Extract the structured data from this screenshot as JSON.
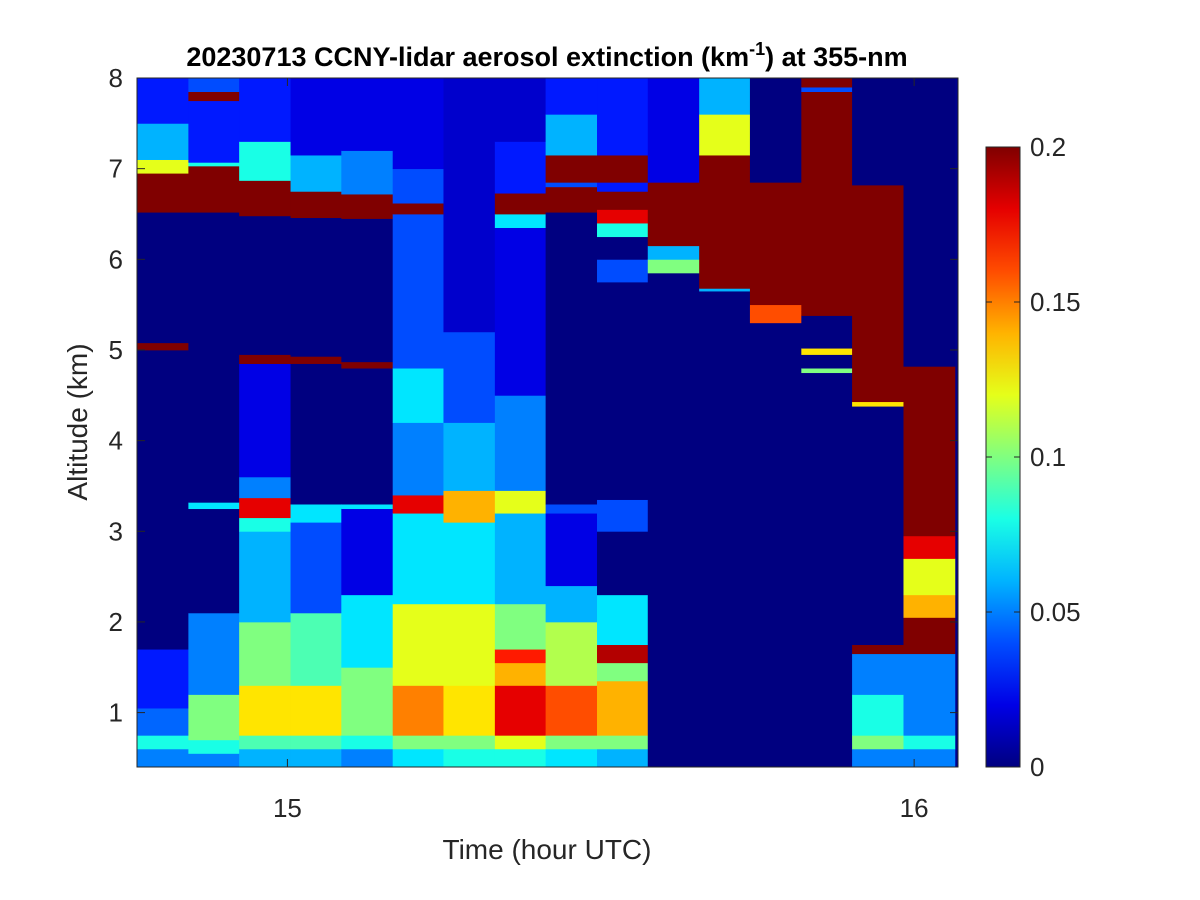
{
  "chart_data": {
    "type": "heatmap",
    "title": "20230713 CCNY-lidar aerosol extinction (km",
    "title_superscript": "-1",
    "title_suffix": ") at 355-nm",
    "xlabel": "Time (hour UTC)",
    "ylabel": "Altitude (km)",
    "xlim": [
      14.76,
      16.07
    ],
    "ylim": [
      0.4,
      8.0
    ],
    "x_ticks": [
      15,
      16
    ],
    "x_tick_labels": [
      "15",
      "16"
    ],
    "y_ticks": [
      1,
      2,
      3,
      4,
      5,
      6,
      7,
      8
    ],
    "y_tick_labels": [
      "1",
      "2",
      "3",
      "4",
      "5",
      "6",
      "7",
      "8"
    ],
    "colormap": "jet",
    "clim": [
      0,
      0.2
    ],
    "colorbar_ticks": [
      0,
      0.05,
      0.1,
      0.15,
      0.2
    ],
    "colorbar_tick_labels": [
      "0",
      "0.05",
      "0.1",
      "0.15",
      "0.2"
    ],
    "time_bins": [
      14.76,
      14.842,
      14.923,
      15.005,
      15.086,
      15.168,
      15.249,
      15.331,
      15.412,
      15.494,
      15.575,
      15.657,
      15.738,
      15.82,
      15.901,
      15.983,
      16.065
    ],
    "profiles": [
      [
        [
          0.4,
          0.6,
          0.05
        ],
        [
          0.6,
          0.75,
          0.08
        ],
        [
          0.75,
          1.05,
          0.045
        ],
        [
          1.05,
          1.7,
          0.03
        ],
        [
          1.7,
          5.0,
          0.0
        ],
        [
          5.0,
          5.08,
          0.2
        ],
        [
          5.08,
          6.52,
          0.0
        ],
        [
          6.52,
          6.95,
          0.2
        ],
        [
          6.95,
          7.1,
          0.12
        ],
        [
          7.1,
          7.5,
          0.06
        ],
        [
          7.5,
          8.0,
          0.03
        ]
      ],
      [
        [
          0.4,
          0.55,
          0.05
        ],
        [
          0.55,
          0.7,
          0.08
        ],
        [
          0.7,
          1.2,
          0.1
        ],
        [
          1.2,
          2.1,
          0.05
        ],
        [
          2.1,
          3.25,
          0.0
        ],
        [
          3.25,
          3.32,
          0.07
        ],
        [
          3.32,
          6.52,
          0.0
        ],
        [
          6.52,
          7.03,
          0.2
        ],
        [
          7.03,
          7.07,
          0.08
        ],
        [
          7.07,
          7.75,
          0.03
        ],
        [
          7.75,
          7.85,
          0.2
        ],
        [
          7.85,
          8.0,
          0.04
        ]
      ],
      [
        [
          0.4,
          0.6,
          0.06
        ],
        [
          0.6,
          0.75,
          0.09
        ],
        [
          0.75,
          1.3,
          0.13
        ],
        [
          1.3,
          2.0,
          0.1
        ],
        [
          2.0,
          3.0,
          0.06
        ],
        [
          3.0,
          3.15,
          0.08
        ],
        [
          3.15,
          3.37,
          0.18
        ],
        [
          3.37,
          3.6,
          0.05
        ],
        [
          3.6,
          4.85,
          0.02
        ],
        [
          4.85,
          4.95,
          0.2
        ],
        [
          4.95,
          6.48,
          0.0
        ],
        [
          6.48,
          6.87,
          0.2
        ],
        [
          6.87,
          7.3,
          0.08
        ],
        [
          7.3,
          8.0,
          0.03
        ]
      ],
      [
        [
          0.4,
          0.6,
          0.06
        ],
        [
          0.6,
          0.75,
          0.09
        ],
        [
          0.75,
          1.3,
          0.13
        ],
        [
          1.3,
          2.1,
          0.09
        ],
        [
          2.1,
          3.1,
          0.04
        ],
        [
          3.1,
          3.3,
          0.07
        ],
        [
          3.3,
          4.85,
          0.0
        ],
        [
          4.85,
          4.93,
          0.2
        ],
        [
          4.93,
          6.46,
          0.0
        ],
        [
          6.46,
          6.75,
          0.2
        ],
        [
          6.75,
          7.15,
          0.06
        ],
        [
          7.15,
          8.0,
          0.02
        ]
      ],
      [
        [
          0.4,
          0.6,
          0.05
        ],
        [
          0.6,
          0.75,
          0.08
        ],
        [
          0.75,
          1.5,
          0.1
        ],
        [
          1.5,
          2.3,
          0.07
        ],
        [
          2.3,
          3.25,
          0.02
        ],
        [
          3.25,
          3.3,
          0.07
        ],
        [
          3.3,
          4.8,
          0.0
        ],
        [
          4.8,
          4.87,
          0.2
        ],
        [
          4.87,
          6.45,
          0.0
        ],
        [
          6.45,
          6.72,
          0.2
        ],
        [
          6.72,
          7.2,
          0.05
        ],
        [
          7.2,
          8.0,
          0.02
        ]
      ],
      [
        [
          0.4,
          0.6,
          0.07
        ],
        [
          0.6,
          0.75,
          0.1
        ],
        [
          0.75,
          1.3,
          0.15
        ],
        [
          1.3,
          2.2,
          0.12
        ],
        [
          2.2,
          3.2,
          0.07
        ],
        [
          3.2,
          3.4,
          0.18
        ],
        [
          3.4,
          4.2,
          0.05
        ],
        [
          4.2,
          4.8,
          0.07
        ],
        [
          4.8,
          6.5,
          0.04
        ],
        [
          6.5,
          6.62,
          0.2
        ],
        [
          6.62,
          7.0,
          0.04
        ],
        [
          7.0,
          8.0,
          0.02
        ]
      ],
      [
        [
          0.4,
          0.6,
          0.08
        ],
        [
          0.6,
          0.75,
          0.1
        ],
        [
          0.75,
          1.3,
          0.13
        ],
        [
          1.3,
          2.2,
          0.12
        ],
        [
          2.2,
          3.1,
          0.07
        ],
        [
          3.1,
          3.45,
          0.14
        ],
        [
          3.45,
          4.2,
          0.06
        ],
        [
          4.2,
          5.2,
          0.04
        ],
        [
          5.2,
          8.0,
          0.015
        ]
      ],
      [
        [
          0.4,
          0.6,
          0.08
        ],
        [
          0.6,
          0.75,
          0.12
        ],
        [
          0.75,
          1.3,
          0.18
        ],
        [
          1.3,
          1.55,
          0.14
        ],
        [
          1.55,
          1.7,
          0.17
        ],
        [
          1.7,
          2.2,
          0.1
        ],
        [
          2.2,
          3.2,
          0.06
        ],
        [
          3.2,
          3.45,
          0.12
        ],
        [
          3.45,
          4.5,
          0.05
        ],
        [
          4.5,
          6.35,
          0.02
        ],
        [
          6.35,
          6.5,
          0.07
        ],
        [
          6.5,
          6.73,
          0.2
        ],
        [
          6.73,
          7.3,
          0.03
        ],
        [
          7.3,
          8.0,
          0.015
        ]
      ],
      [
        [
          0.4,
          0.6,
          0.07
        ],
        [
          0.6,
          0.75,
          0.1
        ],
        [
          0.75,
          1.3,
          0.16
        ],
        [
          1.3,
          2.0,
          0.11
        ],
        [
          2.0,
          2.4,
          0.06
        ],
        [
          2.4,
          3.2,
          0.02
        ],
        [
          3.2,
          3.3,
          0.04
        ],
        [
          3.3,
          6.52,
          0.0
        ],
        [
          6.52,
          6.8,
          0.2
        ],
        [
          6.8,
          6.85,
          0.04
        ],
        [
          6.85,
          7.15,
          0.2
        ],
        [
          7.15,
          7.6,
          0.06
        ],
        [
          7.6,
          8.0,
          0.03
        ]
      ],
      [
        [
          0.4,
          0.6,
          0.06
        ],
        [
          0.6,
          0.75,
          0.1
        ],
        [
          0.75,
          1.35,
          0.14
        ],
        [
          1.35,
          1.55,
          0.1
        ],
        [
          1.55,
          1.75,
          0.19
        ],
        [
          1.75,
          2.3,
          0.07
        ],
        [
          2.3,
          3.0,
          0.0
        ],
        [
          3.0,
          3.35,
          0.04
        ],
        [
          3.35,
          5.75,
          0.0
        ],
        [
          5.75,
          6.0,
          0.04
        ],
        [
          6.0,
          6.25,
          0.0
        ],
        [
          6.25,
          6.4,
          0.08
        ],
        [
          6.4,
          6.55,
          0.18
        ],
        [
          6.55,
          6.75,
          0.2
        ],
        [
          6.75,
          6.85,
          0.03
        ],
        [
          6.85,
          7.15,
          0.2
        ],
        [
          7.15,
          8.0,
          0.03
        ]
      ],
      [
        [
          0.4,
          5.85,
          0.0
        ],
        [
          5.85,
          6.0,
          0.1
        ],
        [
          6.0,
          6.15,
          0.06
        ],
        [
          6.15,
          6.85,
          0.2
        ],
        [
          6.85,
          8.0,
          0.02
        ]
      ],
      [
        [
          0.4,
          5.65,
          0.0
        ],
        [
          5.65,
          5.68,
          0.06
        ],
        [
          5.68,
          7.15,
          0.2
        ],
        [
          7.15,
          7.6,
          0.12
        ],
        [
          7.6,
          8.0,
          0.06
        ]
      ],
      [
        [
          0.4,
          5.3,
          0.0
        ],
        [
          5.3,
          5.5,
          0.16
        ],
        [
          5.5,
          6.85,
          0.2
        ],
        [
          6.85,
          8.0,
          0.0
        ]
      ],
      [
        [
          0.4,
          4.75,
          0.0
        ],
        [
          4.75,
          4.8,
          0.1
        ],
        [
          4.8,
          4.95,
          0.0
        ],
        [
          4.95,
          5.02,
          0.13
        ],
        [
          5.02,
          5.38,
          0.0
        ],
        [
          5.38,
          5.43,
          0.2
        ],
        [
          5.43,
          7.85,
          0.2
        ],
        [
          7.85,
          7.9,
          0.04
        ],
        [
          7.9,
          8.0,
          0.2
        ]
      ],
      [
        [
          0.4,
          0.6,
          0.05
        ],
        [
          0.6,
          0.75,
          0.1
        ],
        [
          0.75,
          1.2,
          0.08
        ],
        [
          1.2,
          1.65,
          0.05
        ],
        [
          1.65,
          1.75,
          0.2
        ],
        [
          1.75,
          1.8,
          0.0
        ],
        [
          1.8,
          4.38,
          0.0
        ],
        [
          4.38,
          4.43,
          0.13
        ],
        [
          4.43,
          6.82,
          0.2
        ],
        [
          6.82,
          8.0,
          0.0
        ]
      ],
      [
        [
          0.4,
          0.6,
          0.05
        ],
        [
          0.6,
          0.75,
          0.08
        ],
        [
          0.75,
          1.65,
          0.05
        ],
        [
          1.65,
          2.05,
          0.2
        ],
        [
          2.05,
          2.3,
          0.14
        ],
        [
          2.3,
          2.7,
          0.12
        ],
        [
          2.7,
          2.95,
          0.18
        ],
        [
          2.95,
          4.82,
          0.2
        ],
        [
          4.82,
          8.0,
          0.0
        ]
      ]
    ]
  }
}
